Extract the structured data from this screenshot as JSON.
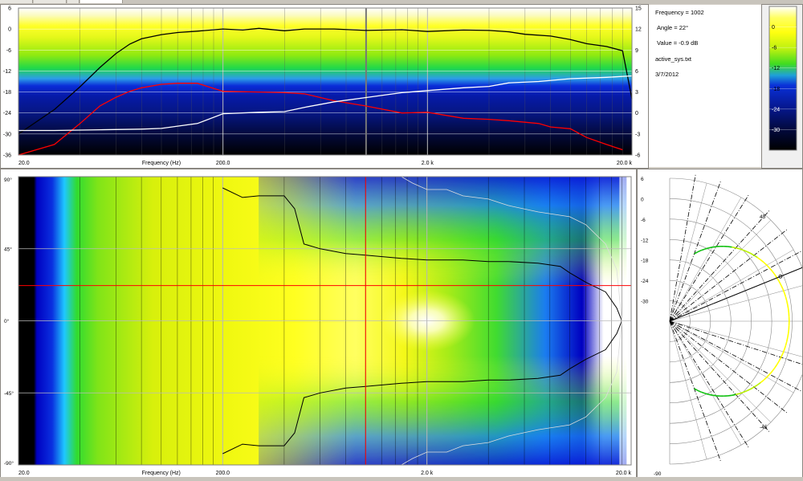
{
  "info": {
    "frequency": "Frequency = 1002",
    "angle": "Angle = 22°",
    "value": "Value = -0.9 dB",
    "file": "active_sys.txt",
    "date": "3/7/2012"
  },
  "colors": {
    "black_trace": "#000000",
    "red_trace": "#ff0000",
    "white_trace": "#ffffff",
    "cursor": "#ff0000"
  },
  "chart_data": [
    {
      "type": "line",
      "xlabel": "Frequency (Hz)",
      "x_scale": "log",
      "xlim": [
        20,
        20000
      ],
      "ylim": [
        -36,
        6
      ],
      "y2lim": [
        -6,
        15
      ],
      "x_tick_labels": [
        "20.0",
        "200.0",
        "2.0 k",
        "20.0 k"
      ],
      "x_ticks": [
        20,
        200,
        2000,
        20000
      ],
      "y_tick_labels": [
        "6",
        "0",
        "-6",
        "-12",
        "-18",
        "-24",
        "-30",
        "-36"
      ],
      "y_ticks": [
        6,
        0,
        -6,
        -12,
        -18,
        -24,
        -30,
        -36
      ],
      "y2_tick_labels": [
        "15",
        "12",
        "9",
        "6",
        "3",
        "0",
        "-3",
        "-6"
      ],
      "y2_ticks": [
        15,
        12,
        9,
        6,
        3,
        0,
        -3,
        -6
      ],
      "cursor_frequency": 1002,
      "series": [
        {
          "color": "#000000",
          "axis": "left",
          "x": [
            20,
            30,
            40,
            50,
            60,
            70,
            80,
            100,
            120,
            150,
            200,
            250,
            300,
            400,
            500,
            700,
            1000,
            1500,
            2000,
            3000,
            4000,
            5000,
            6000,
            8000,
            10000,
            12000,
            15000,
            18000,
            20000
          ],
          "y": [
            -30,
            -23,
            -16.5,
            -11,
            -7,
            -4.3,
            -2.8,
            -1.6,
            -1,
            -0.6,
            0,
            -0.3,
            0.2,
            -0.5,
            0,
            0,
            -0.4,
            -0.2,
            -0.7,
            -0.3,
            -0.4,
            -0.8,
            -1.5,
            -2,
            -3,
            -4.2,
            -5,
            -6.2,
            -20
          ]
        },
        {
          "color": "#ff0000",
          "axis": "left",
          "x": [
            20,
            30,
            40,
            50,
            60,
            70,
            80,
            100,
            120,
            150,
            200,
            300,
            400,
            500,
            700,
            1000,
            1500,
            2000,
            3000,
            4000,
            5000,
            7000,
            8000,
            10000,
            12000,
            15000,
            18000
          ],
          "y": [
            -40,
            -33,
            -27,
            -22,
            -19.5,
            -17.8,
            -16.8,
            -15.8,
            -15.5,
            -15.5,
            -17.8,
            -18,
            -18.2,
            -18.5,
            -20.5,
            -22,
            -24,
            -23.8,
            -25.5,
            -25.8,
            -26.2,
            -27,
            -28,
            -28.5,
            -31,
            -33,
            -34.5
          ]
        },
        {
          "color": "#ffffff",
          "axis": "right",
          "x": [
            20,
            30,
            50,
            80,
            100,
            150,
            200,
            300,
            400,
            500,
            700,
            1000,
            1500,
            2000,
            3000,
            4000,
            5000,
            7000,
            10000,
            15000,
            20000
          ],
          "y": [
            -2.5,
            -2.5,
            -2.4,
            -2.3,
            -2.2,
            -1.5,
            -0.1,
            0.1,
            0.2,
            0.8,
            1.6,
            2.2,
            2.9,
            3.2,
            3.6,
            3.8,
            4.3,
            4.5,
            4.9,
            5.1,
            5.3
          ]
        }
      ]
    },
    {
      "type": "heatmap",
      "xlabel": "Frequency (Hz)",
      "x_scale": "log",
      "xlim": [
        20,
        20000
      ],
      "ylim": [
        -90,
        90
      ],
      "x_tick_labels": [
        "20.0",
        "200.0",
        "2.0 k",
        "20.0 k"
      ],
      "x_ticks": [
        20,
        200,
        2000,
        20000
      ],
      "y_tick_labels": [
        "90°",
        "45°",
        "0°",
        "-45°",
        "-90°"
      ],
      "y_ticks": [
        90,
        45,
        0,
        -45,
        -90
      ],
      "cursor_frequency": 1002,
      "cursor_angle": 22,
      "contour_-6dB": {
        "x": [
          200,
          250,
          300,
          400,
          450,
          500,
          600,
          800,
          1000,
          1500,
          2000,
          3000,
          4000,
          5000,
          7000,
          9000,
          10000,
          12000,
          15000,
          17000,
          18000
        ],
        "y": [
          83,
          77,
          78,
          78,
          70,
          48,
          45,
          42,
          41,
          39,
          38,
          38,
          37,
          37,
          36,
          34,
          30,
          24,
          18,
          8,
          0
        ]
      },
      "contour_-12dB": {
        "x": [
          1500,
          1700,
          2000,
          2500,
          3000,
          4000,
          5000,
          7000,
          10000,
          12000,
          15000,
          17000,
          18000
        ],
        "y": [
          90,
          86,
          82,
          82,
          78,
          76,
          72,
          68,
          65,
          60,
          48,
          32,
          0
        ]
      }
    },
    {
      "type": "line",
      "name_hint": "polar",
      "r_tick_labels": [
        "6",
        "0",
        "-6",
        "-12",
        "-18",
        "-24",
        "-30"
      ],
      "r_ticks": [
        6,
        0,
        -6,
        -12,
        -18,
        -24,
        -30
      ],
      "angle_labels": [
        "45",
        "-45",
        "-90"
      ],
      "cursor_angle": 22
    }
  ],
  "scale_bar": {
    "tick_labels": [
      "0",
      "-6",
      "-12",
      "-18",
      "-24",
      "-30"
    ],
    "ticks": [
      0,
      -6,
      -12,
      -18,
      -24,
      -30
    ],
    "range": [
      6,
      -36
    ]
  }
}
